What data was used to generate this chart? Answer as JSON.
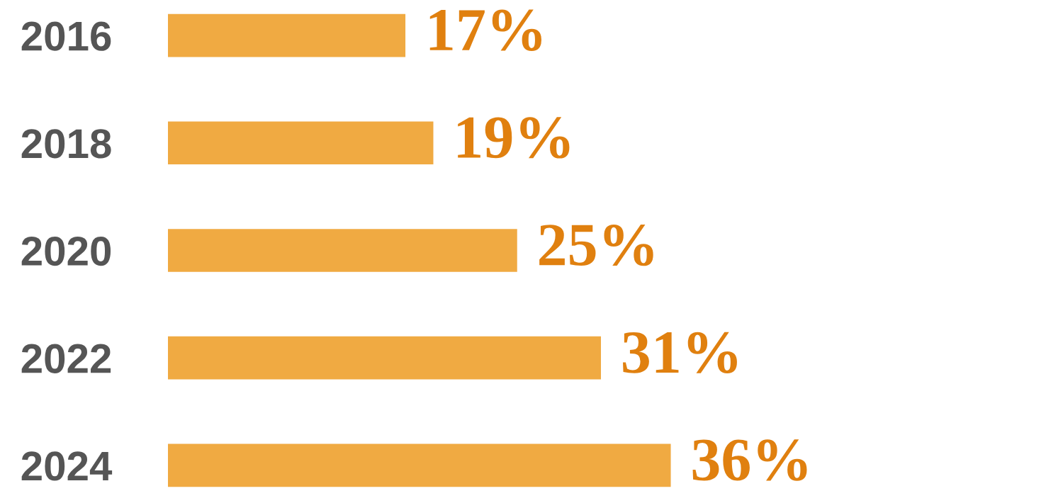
{
  "chart_data": {
    "type": "bar",
    "orientation": "horizontal",
    "categories": [
      "2016",
      "2018",
      "2020",
      "2022",
      "2024"
    ],
    "values": [
      17,
      19,
      25,
      31,
      36
    ],
    "color": "#f0aa42",
    "value_labels": [
      "17%",
      "19%",
      "25%",
      "31%",
      "36%"
    ],
    "tick_labels": "y",
    "grid": false,
    "legend": false
  }
}
